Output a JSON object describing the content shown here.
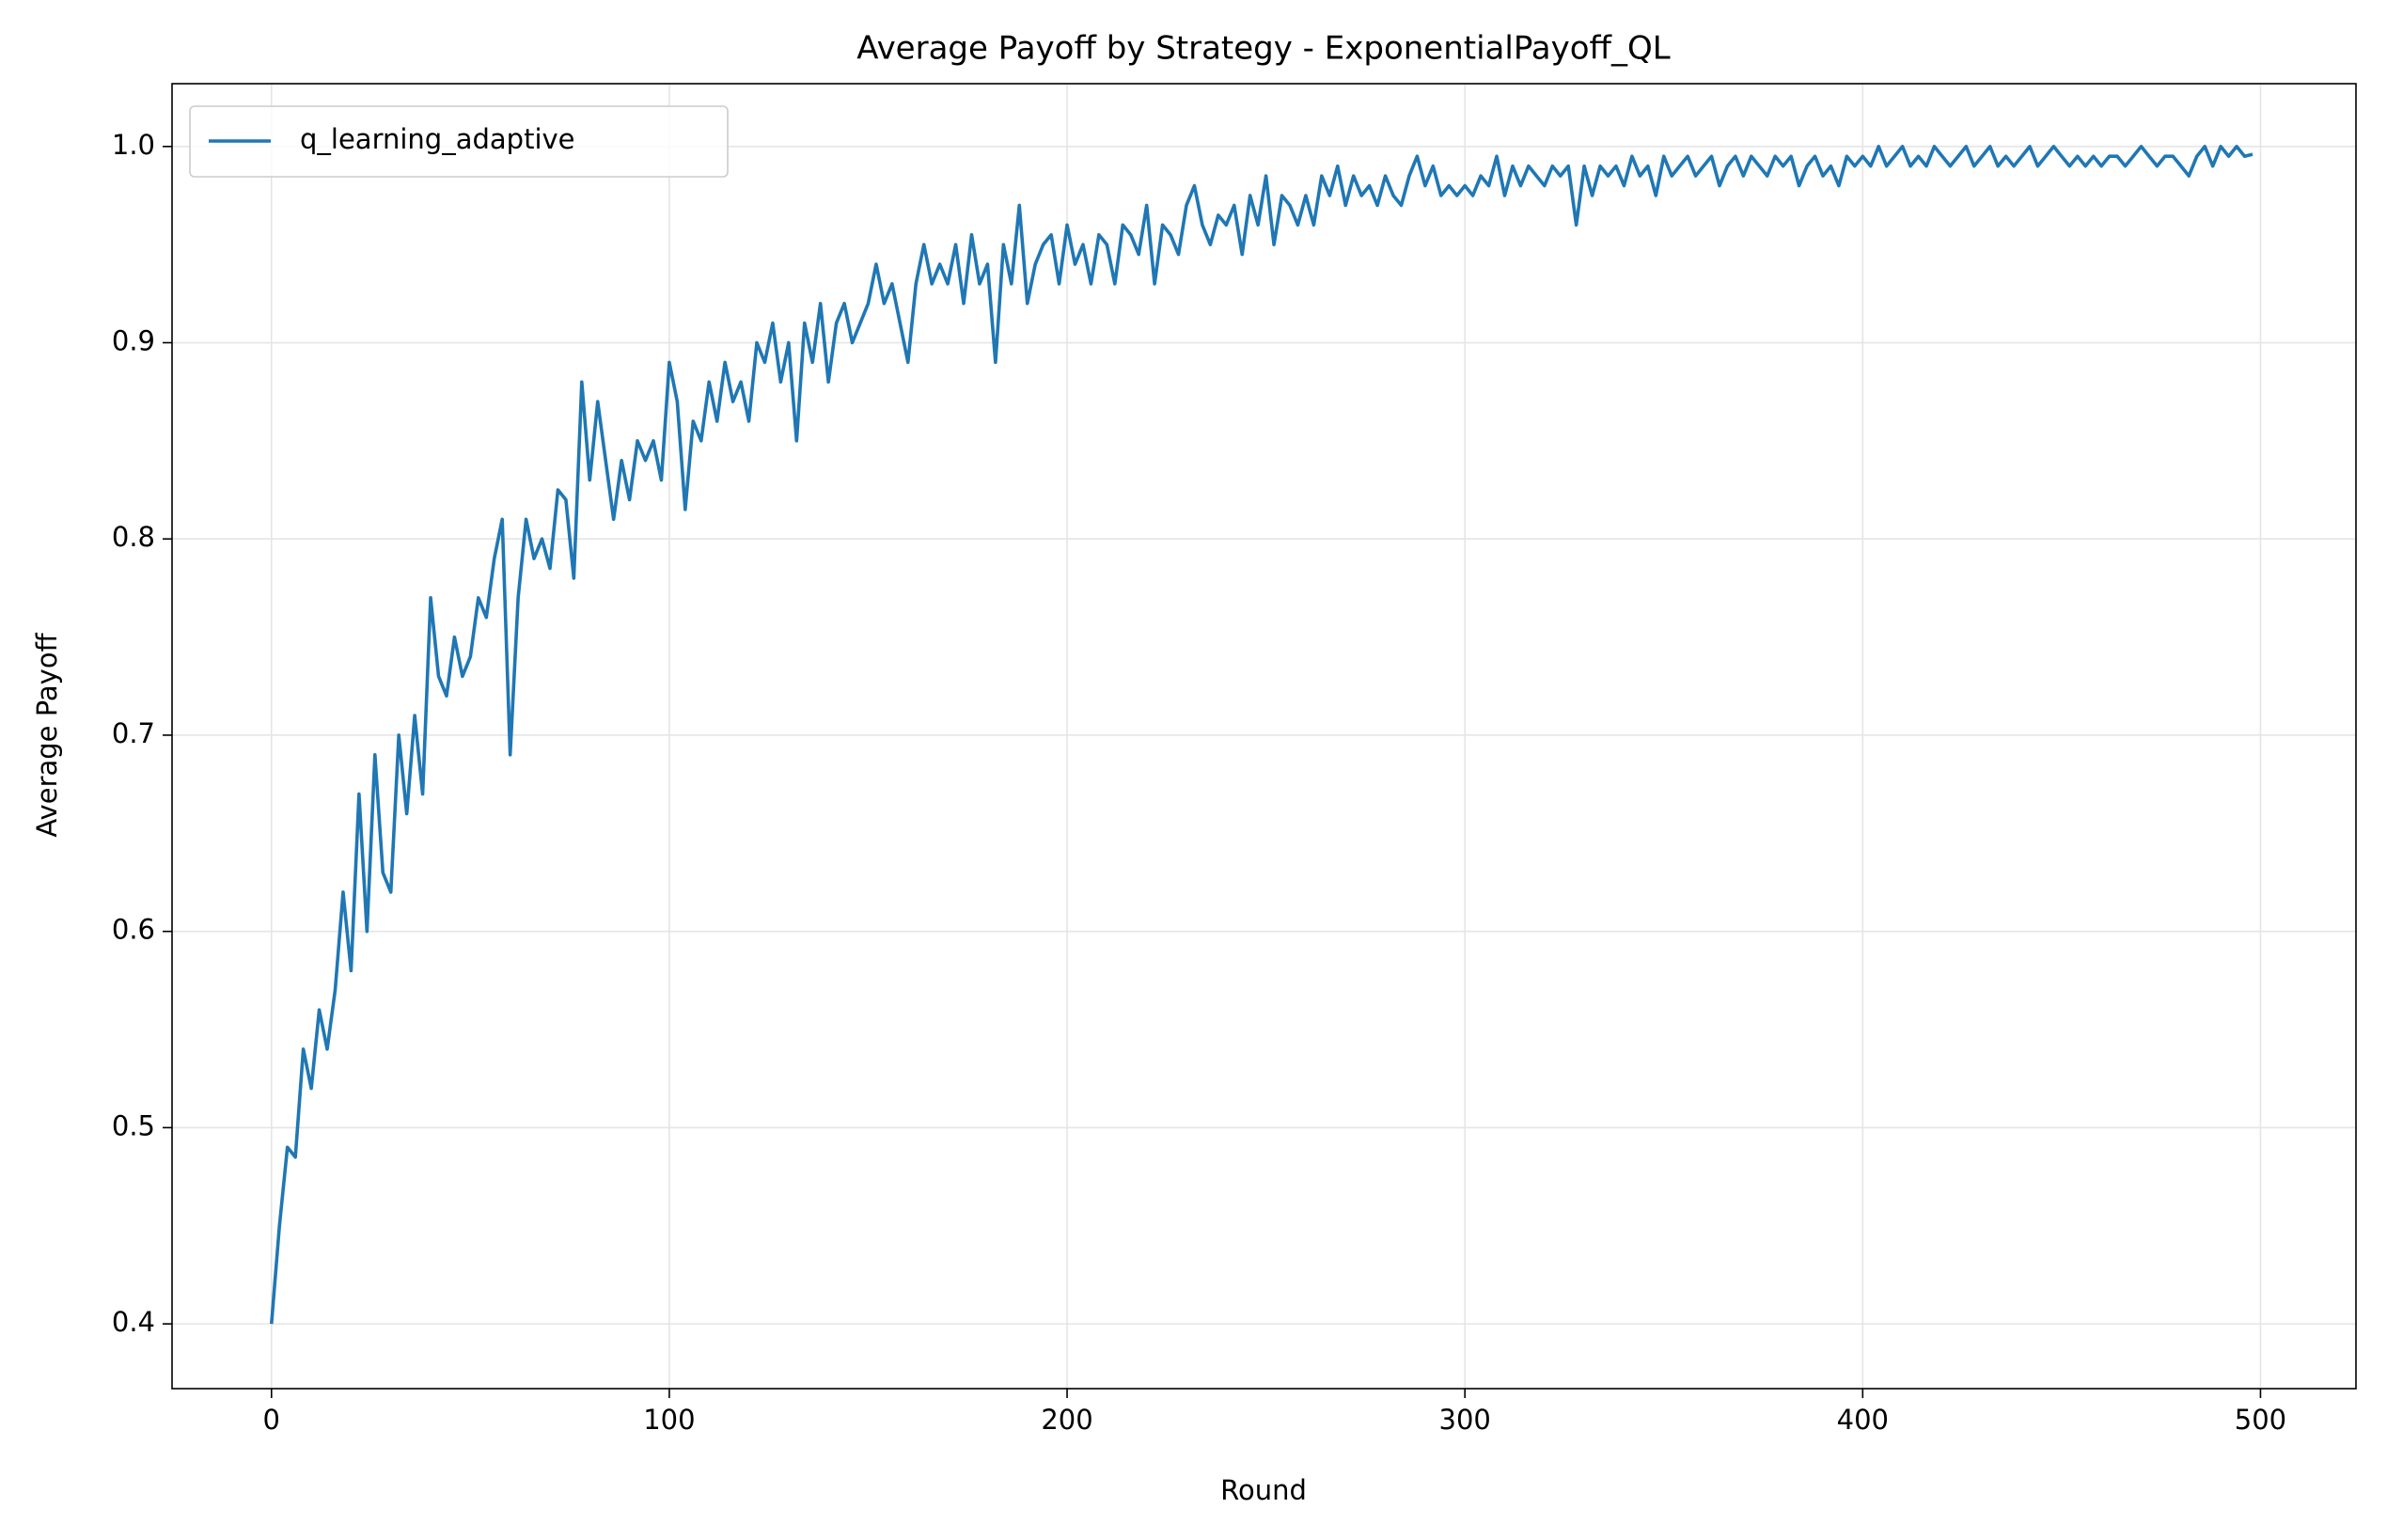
{
  "chart_data": {
    "type": "line",
    "title": "Average Payoff by Strategy - ExponentialPayoff_QL",
    "x_label": "Round",
    "y_label": "Average Payoff",
    "x": [
      0,
      2,
      4,
      6,
      8,
      10,
      12,
      14,
      16,
      18,
      20,
      22,
      24,
      26,
      28,
      30,
      32,
      34,
      36,
      38,
      40,
      42,
      44,
      46,
      48,
      50,
      52,
      54,
      56,
      58,
      60,
      62,
      64,
      66,
      68,
      70,
      72,
      74,
      76,
      78,
      80,
      82,
      84,
      86,
      88,
      90,
      92,
      94,
      96,
      98,
      100,
      102,
      104,
      106,
      108,
      110,
      112,
      114,
      116,
      118,
      120,
      122,
      124,
      126,
      128,
      130,
      132,
      134,
      136,
      138,
      140,
      142,
      144,
      146,
      148,
      150,
      152,
      154,
      156,
      158,
      160,
      162,
      164,
      166,
      168,
      170,
      172,
      174,
      176,
      178,
      180,
      182,
      184,
      186,
      188,
      190,
      192,
      194,
      196,
      198,
      200,
      202,
      204,
      206,
      208,
      210,
      212,
      214,
      216,
      218,
      220,
      222,
      224,
      226,
      228,
      230,
      232,
      234,
      236,
      238,
      240,
      242,
      244,
      246,
      248,
      250,
      252,
      254,
      256,
      258,
      260,
      262,
      264,
      266,
      268,
      270,
      272,
      274,
      276,
      278,
      280,
      282,
      284,
      286,
      288,
      290,
      292,
      294,
      296,
      298,
      300,
      302,
      304,
      306,
      308,
      310,
      312,
      314,
      316,
      318,
      320,
      322,
      324,
      326,
      328,
      330,
      332,
      334,
      336,
      338,
      340,
      342,
      344,
      346,
      348,
      350,
      352,
      354,
      356,
      358,
      360,
      362,
      364,
      366,
      368,
      370,
      372,
      374,
      376,
      378,
      380,
      382,
      384,
      386,
      388,
      390,
      392,
      394,
      396,
      398,
      400,
      402,
      404,
      406,
      408,
      410,
      412,
      414,
      416,
      418,
      420,
      422,
      424,
      426,
      428,
      430,
      432,
      434,
      436,
      438,
      440,
      442,
      444,
      446,
      448,
      450,
      452,
      454,
      456,
      458,
      460,
      462,
      464,
      466,
      468,
      470,
      472,
      474,
      476,
      478,
      480,
      482,
      484,
      486,
      488,
      490,
      492,
      494,
      496,
      498
    ],
    "series": [
      {
        "name": "q_learning_adaptive",
        "color": "#1f77b4",
        "values": [
          0.4,
          0.45,
          0.49,
          0.485,
          0.54,
          0.52,
          0.56,
          0.54,
          0.57,
          0.62,
          0.58,
          0.67,
          0.6,
          0.69,
          0.63,
          0.62,
          0.7,
          0.66,
          0.71,
          0.67,
          0.77,
          0.73,
          0.72,
          0.75,
          0.73,
          0.74,
          0.77,
          0.76,
          0.79,
          0.81,
          0.69,
          0.77,
          0.81,
          0.79,
          0.8,
          0.785,
          0.825,
          0.82,
          0.78,
          0.88,
          0.83,
          0.87,
          0.84,
          0.81,
          0.84,
          0.82,
          0.85,
          0.84,
          0.85,
          0.83,
          0.89,
          0.87,
          0.815,
          0.86,
          0.85,
          0.88,
          0.86,
          0.89,
          0.87,
          0.88,
          0.86,
          0.9,
          0.89,
          0.91,
          0.88,
          0.9,
          0.85,
          0.91,
          0.89,
          0.92,
          0.88,
          0.91,
          0.92,
          0.9,
          0.91,
          0.92,
          0.94,
          0.92,
          0.93,
          0.91,
          0.89,
          0.93,
          0.95,
          0.93,
          0.94,
          0.93,
          0.95,
          0.92,
          0.955,
          0.93,
          0.94,
          0.89,
          0.95,
          0.93,
          0.97,
          0.92,
          0.94,
          0.95,
          0.955,
          0.93,
          0.96,
          0.94,
          0.95,
          0.93,
          0.955,
          0.95,
          0.93,
          0.96,
          0.955,
          0.945,
          0.97,
          0.93,
          0.96,
          0.955,
          0.945,
          0.97,
          0.98,
          0.96,
          0.95,
          0.965,
          0.96,
          0.97,
          0.945,
          0.975,
          0.96,
          0.985,
          0.95,
          0.975,
          0.97,
          0.96,
          0.975,
          0.96,
          0.985,
          0.975,
          0.99,
          0.97,
          0.985,
          0.975,
          0.98,
          0.97,
          0.985,
          0.975,
          0.97,
          0.985,
          0.995,
          0.98,
          0.99,
          0.975,
          0.98,
          0.975,
          0.98,
          0.975,
          0.985,
          0.98,
          0.995,
          0.975,
          0.99,
          0.98,
          0.99,
          0.985,
          0.98,
          0.99,
          0.985,
          0.99,
          0.96,
          0.99,
          0.975,
          0.99,
          0.985,
          0.99,
          0.98,
          0.995,
          0.985,
          0.99,
          0.975,
          0.995,
          0.985,
          0.99,
          0.995,
          0.985,
          0.99,
          0.995,
          0.98,
          0.99,
          0.995,
          0.985,
          0.995,
          0.99,
          0.985,
          0.995,
          0.99,
          0.995,
          0.98,
          0.99,
          0.995,
          0.985,
          0.99,
          0.98,
          0.995,
          0.99,
          0.995,
          0.99,
          1.0,
          0.99,
          0.995,
          1.0,
          0.99,
          0.995,
          0.99,
          1.0,
          0.995,
          0.99,
          0.995,
          1.0,
          0.99,
          0.995,
          1.0,
          0.99,
          0.995,
          0.99,
          0.995,
          1.0,
          0.99,
          0.995,
          1.0,
          0.995,
          0.99,
          0.995,
          0.99,
          0.995,
          0.99,
          0.995,
          0.995,
          0.99,
          0.995,
          1.0,
          0.995,
          0.99,
          0.995,
          0.995,
          0.99,
          0.985,
          0.995,
          1.0,
          0.99,
          1.0,
          0.995,
          1.0,
          0.995,
          0.996
        ]
      }
    ],
    "xlim": [
      -25,
      524
    ],
    "xticks": [
      0,
      100,
      200,
      300,
      400,
      500
    ],
    "ylim": [
      0.367,
      1.032
    ],
    "yticks": [
      0.4,
      0.5,
      0.6,
      0.7,
      0.8,
      0.9,
      {
        "value": 1,
        "label": "1.0"
      }
    ],
    "grid": true,
    "legend": "upper left"
  }
}
